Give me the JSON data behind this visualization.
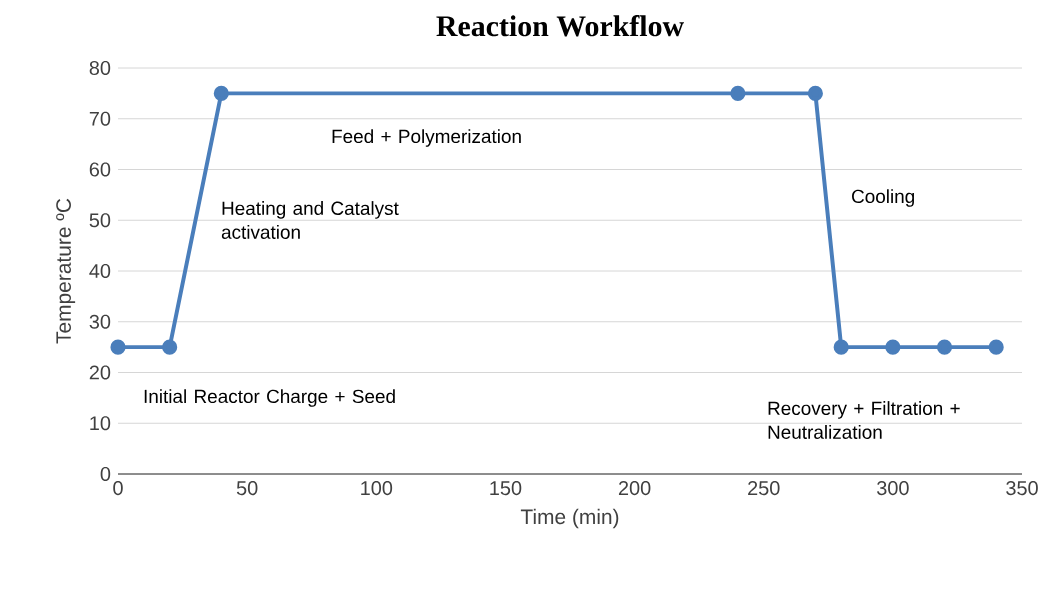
{
  "chart_data": {
    "type": "line",
    "title": "Reaction Workflow",
    "xlabel": "Time (min)",
    "ylabel": "Temperature ºC",
    "x": [
      0,
      20,
      40,
      240,
      270,
      280,
      300,
      320,
      340
    ],
    "series": [
      {
        "color": "#4a7ebb",
        "values": [
          25,
          25,
          75,
          75,
          75,
          25,
          25,
          25,
          25
        ]
      }
    ],
    "xlim": [
      0,
      350
    ],
    "xticks": [
      0,
      50,
      100,
      150,
      200,
      250,
      300,
      350
    ],
    "ylim": [
      0,
      80
    ],
    "yticks": [
      0,
      10,
      20,
      30,
      40,
      50,
      60,
      70,
      80
    ],
    "grid": "y",
    "marker": "circle",
    "line_style": "solid",
    "annotations": [
      "Initial Reactor Charge + Seed",
      "Heating and Catalyst activation",
      "Feed + Polymerization",
      "Cooling",
      "Recovery + Filtration + Neutralization"
    ]
  }
}
